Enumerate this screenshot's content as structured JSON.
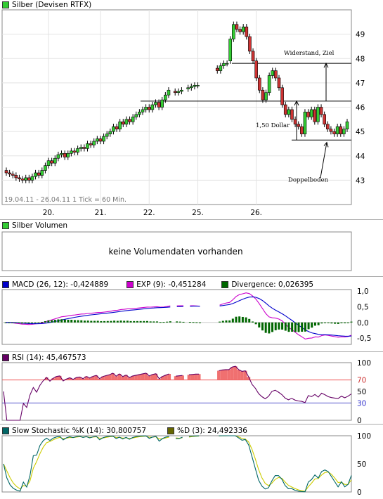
{
  "main": {
    "legend_label": "Silber (Devisen RTFX)",
    "legend_color": "#33cc33",
    "info": "19.04.11 - 26.04.11  1 Tick = 60 Min."
  },
  "volume": {
    "legend_label": "Silber Volumen",
    "legend_color": "#33cc33",
    "message": "keine Volumendaten vorhanden"
  },
  "macd": {
    "legend_label": "MACD (26, 12): -0,424889",
    "legend_color": "#0000cc",
    "exp_label": "EXP (9): -0,451284",
    "exp_color": "#cc00cc",
    "div_label": "Divergence: 0,026395",
    "div_color": "#006600"
  },
  "rsi": {
    "legend_label": "RSI (14): 45,467573",
    "legend_color": "#660066"
  },
  "stoch": {
    "legend_label": "Slow Stochastic %K (14): 30,800757",
    "legend_color": "#006666",
    "d_label": "%D (3): 24,492336",
    "d_color": "#666600"
  },
  "chart_data": [
    {
      "type": "candlestick",
      "title": "Silber (Devisen RTFX)",
      "x_ticks": [
        "20.",
        "21.",
        "22.",
        "25.",
        "26."
      ],
      "y_ticks": [
        "43",
        "44",
        "45",
        "46",
        "47",
        "48",
        "49"
      ],
      "ylim": [
        42,
        50
      ],
      "grid": true,
      "annotations": [
        {
          "text": "Widerstand, Ziel",
          "value": 47.8
        },
        {
          "text": "1,50 Dollar",
          "value": 46.2
        },
        {
          "text": "Doppelboden",
          "value": 44.65
        }
      ],
      "horizontal_lines": [
        47.8,
        46.25,
        44.65
      ],
      "close": [
        43.3,
        43.25,
        43.2,
        43.1,
        43.05,
        43.0,
        43.1,
        43.0,
        43.15,
        43.3,
        43.2,
        43.4,
        43.6,
        43.8,
        43.7,
        43.9,
        44.05,
        44.1,
        43.95,
        44.1,
        44.2,
        44.15,
        44.3,
        44.35,
        44.3,
        44.5,
        44.45,
        44.6,
        44.7,
        44.6,
        44.8,
        44.9,
        45.0,
        45.2,
        45.1,
        45.4,
        45.3,
        45.5,
        45.4,
        45.6,
        45.7,
        45.8,
        45.9,
        46.0,
        45.9,
        46.1,
        46.2,
        46.0,
        46.3,
        46.5,
        46.7,
        null,
        46.6,
        46.65,
        46.7,
        null,
        46.8,
        46.85,
        46.9,
        46.9,
        null,
        null,
        null,
        null,
        null,
        47.5,
        47.7,
        47.8,
        47.8,
        48.8,
        49.4,
        49.2,
        49.1,
        49.3,
        48.9,
        48.3,
        47.9,
        47.2,
        46.7,
        46.3,
        46.6,
        47.3,
        47.5,
        47.2,
        46.8,
        46.1,
        45.7,
        45.9,
        45.5,
        45.3,
        45.2,
        44.9,
        45.8,
        45.6,
        45.9,
        45.4,
        46.0,
        45.7,
        45.3,
        45.1,
        45.0,
        44.9,
        45.2,
        44.9,
        45.1,
        45.4
      ],
      "open": [
        43.4,
        43.3,
        43.25,
        43.2,
        43.1,
        43.05,
        43.0,
        43.1,
        43.0,
        43.15,
        43.3,
        43.2,
        43.4,
        43.6,
        43.8,
        43.7,
        43.9,
        44.05,
        44.1,
        43.95,
        44.1,
        44.2,
        44.15,
        44.3,
        44.35,
        44.3,
        44.5,
        44.45,
        44.6,
        44.7,
        44.6,
        44.8,
        44.9,
        45.0,
        45.2,
        45.1,
        45.4,
        45.3,
        45.5,
        45.4,
        45.6,
        45.7,
        45.8,
        45.9,
        46.0,
        45.9,
        46.1,
        46.2,
        46.0,
        46.3,
        46.5,
        null,
        46.65,
        46.6,
        46.65,
        null,
        46.75,
        46.8,
        46.85,
        46.9,
        null,
        null,
        null,
        null,
        null,
        47.6,
        47.5,
        47.7,
        47.8,
        47.9,
        48.8,
        49.4,
        49.2,
        49.1,
        49.3,
        48.9,
        48.3,
        47.9,
        47.2,
        46.7,
        46.3,
        46.6,
        47.3,
        47.5,
        47.2,
        46.8,
        46.1,
        45.7,
        45.9,
        45.5,
        45.3,
        45.2,
        44.9,
        45.8,
        45.6,
        45.9,
        45.4,
        46.0,
        45.7,
        45.3,
        45.1,
        45.0,
        44.9,
        45.2,
        44.9,
        45.1
      ],
      "series": [
        {
          "name": "Silber (Devisen RTFX)"
        }
      ]
    },
    {
      "type": "line",
      "title": "MACD (26, 12)",
      "ylim": [
        -0.5,
        1.0
      ],
      "y_ticks": [
        "1,0",
        "0,5",
        "0,0",
        "-0,5"
      ],
      "series": [
        {
          "name": "MACD (26, 12)",
          "last": -0.424889
        },
        {
          "name": "EXP (9)",
          "last": -0.451284
        },
        {
          "name": "Divergence",
          "last": 0.026395
        }
      ]
    },
    {
      "type": "line",
      "title": "RSI (14)",
      "ylim": [
        0,
        100
      ],
      "y_ticks": [
        "100",
        "70",
        "50",
        "30",
        "0"
      ],
      "levels": [
        70,
        30
      ],
      "series": [
        {
          "name": "RSI (14)",
          "last": 45.467573
        }
      ]
    },
    {
      "type": "line",
      "title": "Slow Stochastic %K (14)",
      "ylim": [
        0,
        100
      ],
      "y_ticks": [
        "100",
        "50",
        "0"
      ],
      "series": [
        {
          "name": "Slow Stochastic %K (14)",
          "last": 30.800757
        },
        {
          "name": "%D (3)",
          "last": 24.492336
        }
      ]
    }
  ]
}
